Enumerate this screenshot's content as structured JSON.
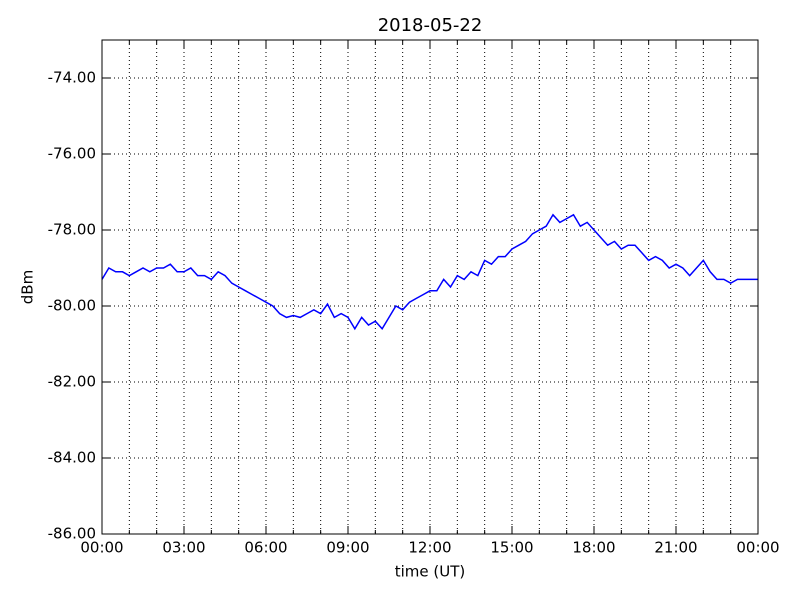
{
  "chart_data": {
    "type": "line",
    "title": "2018-05-22",
    "xlabel": "time (UT)",
    "ylabel": "dBm",
    "x": [
      0,
      0.25,
      0.5,
      0.75,
      1,
      1.25,
      1.5,
      1.75,
      2,
      2.25,
      2.5,
      2.75,
      3,
      3.25,
      3.5,
      3.75,
      4,
      4.25,
      4.5,
      4.75,
      5,
      5.25,
      5.5,
      5.75,
      6,
      6.25,
      6.5,
      6.75,
      7,
      7.25,
      7.5,
      7.75,
      8,
      8.25,
      8.5,
      8.75,
      9,
      9.25,
      9.5,
      9.75,
      10,
      10.25,
      10.5,
      10.75,
      11,
      11.25,
      11.5,
      11.75,
      12,
      12.25,
      12.5,
      12.75,
      13,
      13.25,
      13.5,
      13.75,
      14,
      14.25,
      14.5,
      14.75,
      15,
      15.25,
      15.5,
      15.75,
      16,
      16.25,
      16.5,
      16.75,
      17,
      17.25,
      17.5,
      17.75,
      18,
      18.25,
      18.5,
      18.75,
      19,
      19.25,
      19.5,
      19.75,
      20,
      20.25,
      20.5,
      20.75,
      21,
      21.25,
      21.5,
      21.75,
      22,
      22.25,
      22.5,
      22.75,
      23,
      23.25,
      23.5,
      23.75,
      24
    ],
    "values": [
      -79.3,
      -79.0,
      -79.1,
      -79.1,
      -79.2,
      -79.1,
      -79.0,
      -79.1,
      -79.0,
      -79.0,
      -78.9,
      -79.1,
      -79.1,
      -79.0,
      -79.2,
      -79.2,
      -79.3,
      -79.1,
      -79.2,
      -79.4,
      -79.5,
      -79.6,
      -79.7,
      -79.8,
      -79.9,
      -80.0,
      -80.2,
      -80.3,
      -80.25,
      -80.3,
      -80.2,
      -80.1,
      -80.2,
      -79.95,
      -80.3,
      -80.2,
      -80.3,
      -80.6,
      -80.3,
      -80.5,
      -80.4,
      -80.6,
      -80.3,
      -80.0,
      -80.1,
      -79.9,
      -79.8,
      -79.7,
      -79.6,
      -79.6,
      -79.3,
      -79.5,
      -79.2,
      -79.3,
      -79.1,
      -79.2,
      -78.8,
      -78.9,
      -78.7,
      -78.7,
      -78.5,
      -78.4,
      -78.3,
      -78.1,
      -78.0,
      -77.9,
      -77.6,
      -77.8,
      -77.7,
      -77.6,
      -77.9,
      -77.8,
      -78.0,
      -78.2,
      -78.4,
      -78.3,
      -78.5,
      -78.4,
      -78.4,
      -78.6,
      -78.8,
      -78.7,
      -78.8,
      -79.0,
      -78.9,
      -79.0,
      -79.2,
      -79.0,
      -78.8,
      -79.1,
      -79.3,
      -79.3,
      -79.4,
      -79.3,
      -79.3,
      -79.3,
      -79.3
    ],
    "color": "#0000ff",
    "xlim": [
      0,
      24
    ],
    "xticks": [
      {
        "value": 0,
        "label": "00:00"
      },
      {
        "value": 3,
        "label": "03:00"
      },
      {
        "value": 6,
        "label": "06:00"
      },
      {
        "value": 9,
        "label": "09:00"
      },
      {
        "value": 12,
        "label": "12:00"
      },
      {
        "value": 15,
        "label": "15:00"
      },
      {
        "value": 18,
        "label": "18:00"
      },
      {
        "value": 21,
        "label": "21:00"
      },
      {
        "value": 24,
        "label": "00:00"
      }
    ],
    "xminorticks": [
      1,
      2,
      4,
      5,
      7,
      8,
      10,
      11,
      13,
      14,
      16,
      17,
      19,
      20,
      22,
      23
    ],
    "ylim": [
      -86,
      -73
    ],
    "yticks": [
      {
        "value": -86,
        "label": "-86.00"
      },
      {
        "value": -84,
        "label": "-84.00"
      },
      {
        "value": -82,
        "label": "-82.00"
      },
      {
        "value": -80,
        "label": "-80.00"
      },
      {
        "value": -78,
        "label": "-78.00"
      },
      {
        "value": -76,
        "label": "-76.00"
      },
      {
        "value": -74,
        "label": "-74.00"
      }
    ],
    "grid": true
  }
}
